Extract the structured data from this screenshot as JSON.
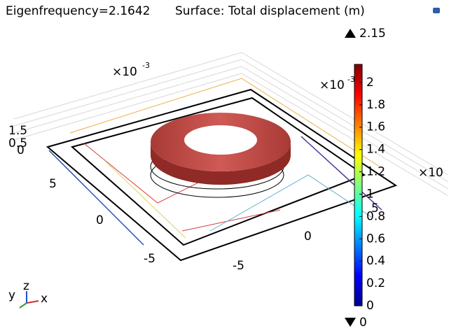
{
  "chart_data": {
    "type": "surface3d",
    "title": "Eigenfrequency=2.1642",
    "subtitle": "Surface: Total displacement (m)",
    "colorbar": {
      "clim": [
        0,
        2.15
      ],
      "ticks": [
        0,
        0.2,
        0.4,
        0.6,
        0.8,
        1,
        1.2,
        1.4,
        1.6,
        1.8,
        2
      ],
      "max": 2.15,
      "min": 0
    },
    "axes": {
      "x": {
        "ticks": [
          -5,
          0,
          5
        ],
        "label": "x",
        "multiplier": "×10"
      },
      "y": {
        "ticks": [
          5,
          0,
          -5
        ],
        "label": "y",
        "multiplier": "×10",
        "exponent": "-3"
      },
      "z": {
        "ticks": [
          1.5,
          0.5,
          0
        ],
        "label": "z",
        "multiplier": "×10",
        "exponent": "-3"
      }
    }
  }
}
